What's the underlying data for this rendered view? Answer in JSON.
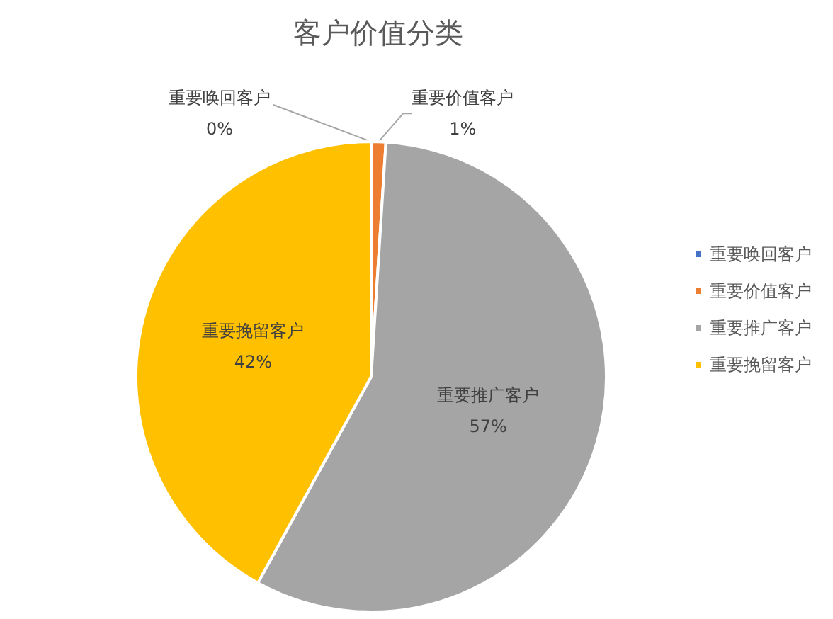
{
  "chart_data": {
    "type": "pie",
    "title": "客户价值分类",
    "categories": [
      "重要唤回客户",
      "重要价值客户",
      "重要推广客户",
      "重要挽留客户"
    ],
    "values": [
      0,
      1,
      57,
      42
    ],
    "colors": [
      "#4472c4",
      "#ed7d31",
      "#a5a5a5",
      "#ffc000"
    ],
    "value_labels": [
      "0%",
      "1%",
      "57%",
      "42%"
    ],
    "legend": "right"
  }
}
